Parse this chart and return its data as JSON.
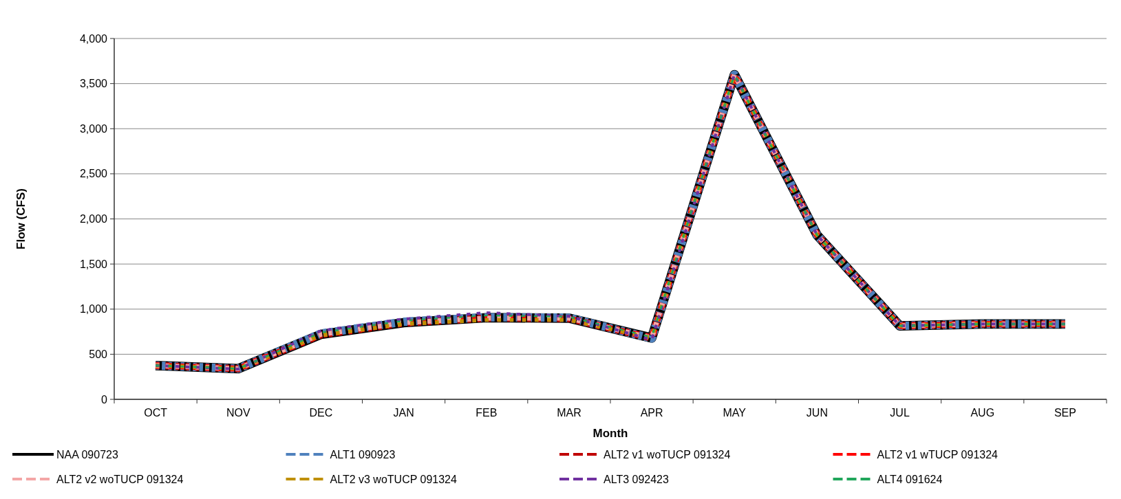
{
  "chart_data": {
    "type": "line",
    "xlabel": "Month",
    "ylabel": "Flow (CFS)",
    "categories": [
      "OCT",
      "NOV",
      "DEC",
      "JAN",
      "FEB",
      "MAR",
      "APR",
      "MAY",
      "JUN",
      "JUL",
      "AUG",
      "SEP"
    ],
    "ylim": [
      0,
      4000
    ],
    "yticks": [
      {
        "value": 0,
        "label": "0"
      },
      {
        "value": 500,
        "label": "500"
      },
      {
        "value": 1000,
        "label": "1,000"
      },
      {
        "value": 1500,
        "label": "1,500"
      },
      {
        "value": 2000,
        "label": "2,000"
      },
      {
        "value": 2500,
        "label": "2,500"
      },
      {
        "value": 3000,
        "label": "3,000"
      },
      {
        "value": 3500,
        "label": "3,500"
      },
      {
        "value": 4000,
        "label": "4,000"
      }
    ],
    "grid": "y",
    "legend": "bottom",
    "marker": "none",
    "series": [
      {
        "name": "NAA 090723",
        "color": "#000000",
        "line_style": "solid",
        "values": [
          375,
          340,
          720,
          850,
          905,
          900,
          680,
          3600,
          1820,
          815,
          835,
          835
        ]
      },
      {
        "name": "ALT1 090923",
        "color": "#4f81bd",
        "line_style": "dashed",
        "values": [
          375,
          340,
          730,
          860,
          910,
          905,
          675,
          3600,
          1820,
          815,
          835,
          835
        ]
      },
      {
        "name": "ALT2 v1 woTUCP 091324",
        "color": "#c00000",
        "line_style": "dashed",
        "values": [
          375,
          340,
          715,
          845,
          900,
          895,
          680,
          3600,
          1820,
          815,
          835,
          835
        ]
      },
      {
        "name": "ALT2 v1 wTUCP 091324",
        "color": "#ff0000",
        "line_style": "dashed",
        "values": [
          375,
          340,
          715,
          845,
          900,
          895,
          680,
          3600,
          1820,
          815,
          835,
          835
        ]
      },
      {
        "name": "ALT2 v2 woTUCP 091324",
        "color": "#f4a6a6",
        "line_style": "dashed",
        "values": [
          375,
          340,
          720,
          850,
          900,
          900,
          680,
          3600,
          1820,
          815,
          835,
          835
        ]
      },
      {
        "name": "ALT2 v3 woTUCP 091324",
        "color": "#bf9000",
        "line_style": "dashed",
        "values": [
          375,
          340,
          710,
          835,
          880,
          880,
          680,
          3600,
          1820,
          815,
          835,
          835
        ]
      },
      {
        "name": "ALT3 092423",
        "color": "#7030a0",
        "line_style": "dashed",
        "values": [
          375,
          335,
          760,
          890,
          960,
          920,
          660,
          3600,
          1820,
          815,
          835,
          835
        ]
      },
      {
        "name": "ALT4 091624",
        "color": "#21a65b",
        "line_style": "dashed",
        "values": [
          375,
          340,
          740,
          870,
          930,
          915,
          690,
          3600,
          1820,
          815,
          835,
          835
        ]
      }
    ]
  }
}
